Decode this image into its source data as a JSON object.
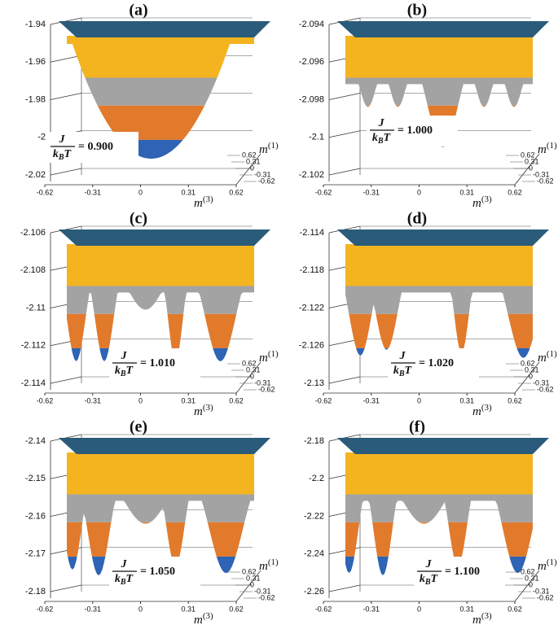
{
  "panels": [
    {
      "label": "(a)",
      "zticks": [
        -1.94,
        -1.96,
        -1.98,
        -2,
        -2.02
      ],
      "xticks": [
        -0.62,
        -0.31,
        0,
        0.31,
        0.62
      ],
      "yticks": [
        0.62,
        0.31,
        0,
        -0.31,
        -0.62
      ],
      "xlabel": {
        "base": "m",
        "sup": "(3)"
      },
      "ylabel": {
        "base": "m",
        "sup": "(1)"
      },
      "annotation": {
        "num": "J",
        "den": "k",
        "den_sub": "B",
        "den_rest": "T",
        "rhs": "= 0.900"
      }
    },
    {
      "label": "(b)",
      "zticks": [
        -2.094,
        -2.096,
        -2.098,
        -2.1,
        -2.102
      ],
      "xticks": [
        -0.62,
        -0.31,
        0,
        0.31,
        0.62
      ],
      "yticks": [
        0.62,
        0.31,
        0,
        -0.31,
        -0.62
      ],
      "xlabel": {
        "base": "m",
        "sup": "(3)"
      },
      "ylabel": {
        "base": "m",
        "sup": "(1)"
      },
      "annotation": {
        "num": "J",
        "den": "k",
        "den_sub": "B",
        "den_rest": "T",
        "rhs": "= 1.000"
      }
    },
    {
      "label": "(c)",
      "zticks": [
        -2.106,
        -2.108,
        -2.11,
        -2.112,
        -2.114
      ],
      "xticks": [
        -0.62,
        -0.31,
        0,
        0.31,
        0.62
      ],
      "yticks": [
        0.62,
        0.31,
        0,
        -0.31,
        -0.62
      ],
      "xlabel": {
        "base": "m",
        "sup": "(3)"
      },
      "ylabel": {
        "base": "m",
        "sup": "(1)"
      },
      "annotation": {
        "num": "J",
        "den": "k",
        "den_sub": "B",
        "den_rest": "T",
        "rhs": "= 1.010"
      }
    },
    {
      "label": "(d)",
      "zticks": [
        -2.114,
        -2.118,
        -2.122,
        -2.126,
        -2.13
      ],
      "xticks": [
        -0.62,
        -0.31,
        0,
        0.31,
        0.62
      ],
      "yticks": [
        0.62,
        0.31,
        0,
        -0.31,
        -0.62
      ],
      "xlabel": {
        "base": "m",
        "sup": "(3)"
      },
      "ylabel": {
        "base": "m",
        "sup": "(1)"
      },
      "annotation": {
        "num": "J",
        "den": "k",
        "den_sub": "B",
        "den_rest": "T",
        "rhs": "= 1.020"
      }
    },
    {
      "label": "(e)",
      "zticks": [
        -2.14,
        -2.15,
        -2.16,
        -2.17,
        -2.18
      ],
      "xticks": [
        -0.62,
        -0.31,
        0,
        0.31,
        0.62
      ],
      "yticks": [
        0.62,
        0.31,
        0,
        -0.31,
        -0.62
      ],
      "xlabel": {
        "base": "m",
        "sup": "(3)"
      },
      "ylabel": {
        "base": "m",
        "sup": "(1)"
      },
      "annotation": {
        "num": "J",
        "den": "k",
        "den_sub": "B",
        "den_rest": "T",
        "rhs": "= 1.050"
      }
    },
    {
      "label": "(f)",
      "zticks": [
        -2.18,
        -2.2,
        -2.22,
        -2.24,
        -2.26
      ],
      "xticks": [
        -0.62,
        -0.31,
        0,
        0.31,
        0.62
      ],
      "yticks": [
        0.62,
        0.31,
        0,
        -0.31,
        -0.62
      ],
      "xlabel": {
        "base": "m",
        "sup": "(3)"
      },
      "ylabel": {
        "base": "m",
        "sup": "(1)"
      },
      "annotation": {
        "num": "J",
        "den": "k",
        "den_sub": "B",
        "den_rest": "T",
        "rhs": "= 1.100"
      }
    }
  ]
}
